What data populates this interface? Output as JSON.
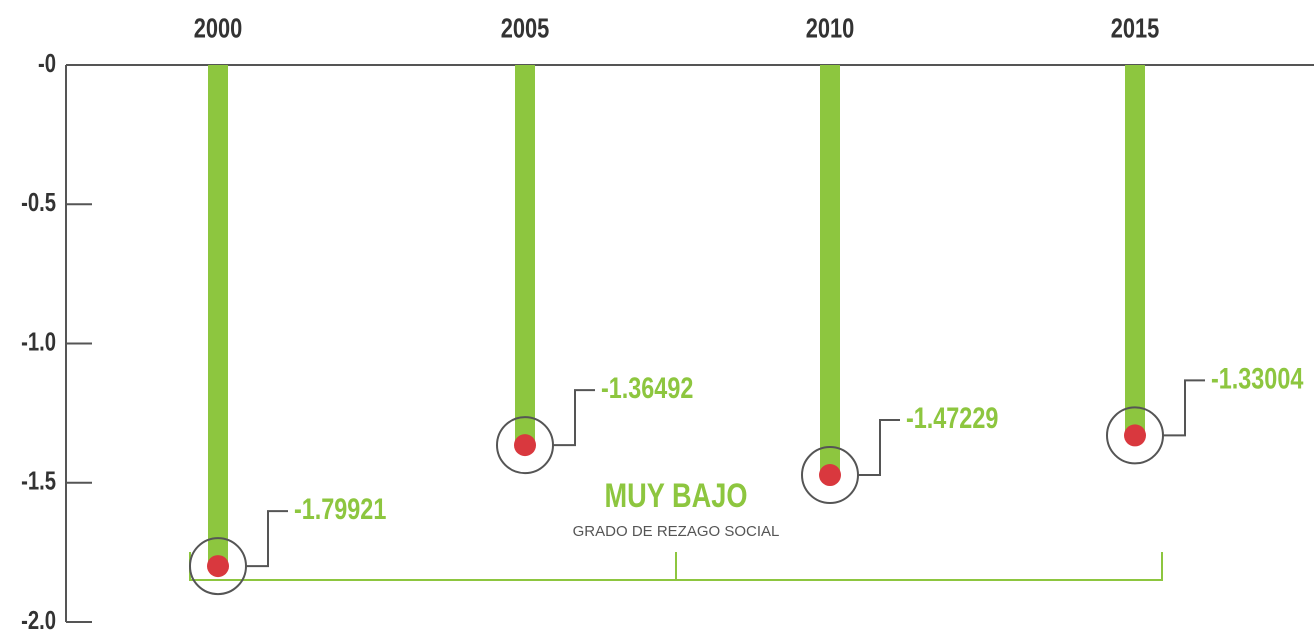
{
  "chart_data": {
    "type": "bar",
    "categories": [
      "2000",
      "2005",
      "2010",
      "2015"
    ],
    "values": [
      -1.79921,
      -1.36492,
      -1.47229,
      -1.33004
    ],
    "color": "#8dc63f",
    "dot_color": "#d9383e",
    "ylim": [
      0,
      -2
    ],
    "yticks": [
      {
        "value": 0,
        "label": "-0"
      },
      -0.5,
      {
        "value": -1,
        "label": "-1.0"
      },
      -1.5,
      {
        "value": -2,
        "label": "-2.0"
      }
    ],
    "annotation": "MUY BAJO",
    "annotation_subtitle": "GRADO DE REZAGO SOCIAL"
  }
}
